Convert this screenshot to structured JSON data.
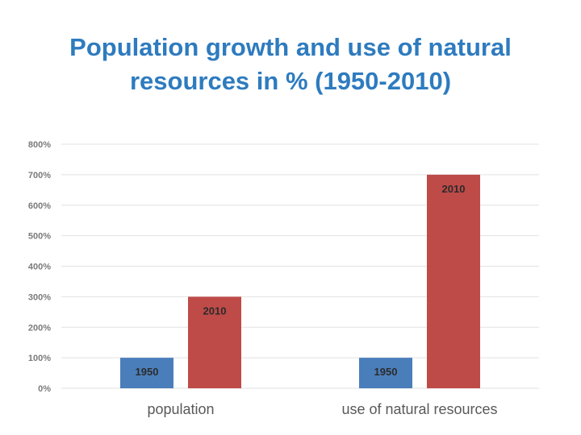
{
  "slide": {
    "title_line1": "Population growth and use of natural",
    "title_line2": "resources in % (1950-2010)"
  },
  "colors": {
    "title": "#2e7bbf",
    "series_1950": "#4a7ebb",
    "series_2010": "#be4b48"
  },
  "chart_data": {
    "type": "bar",
    "title": "Population growth and use of natural resources in % (1950-2010)",
    "categories": [
      "population",
      "use of natural resources"
    ],
    "series": [
      {
        "name": "1950",
        "values": [
          100,
          100
        ],
        "color": "#4a7ebb"
      },
      {
        "name": "2010",
        "values": [
          300,
          700
        ],
        "color": "#be4b48"
      }
    ],
    "y_unit": "%",
    "y_ticks": [
      "0%",
      "100%",
      "200%",
      "300%",
      "400%",
      "500%",
      "600%",
      "700%",
      "800%"
    ],
    "ylim": [
      0,
      800
    ],
    "grid": true,
    "legend": "none (series names shown as data labels inside bars)"
  }
}
